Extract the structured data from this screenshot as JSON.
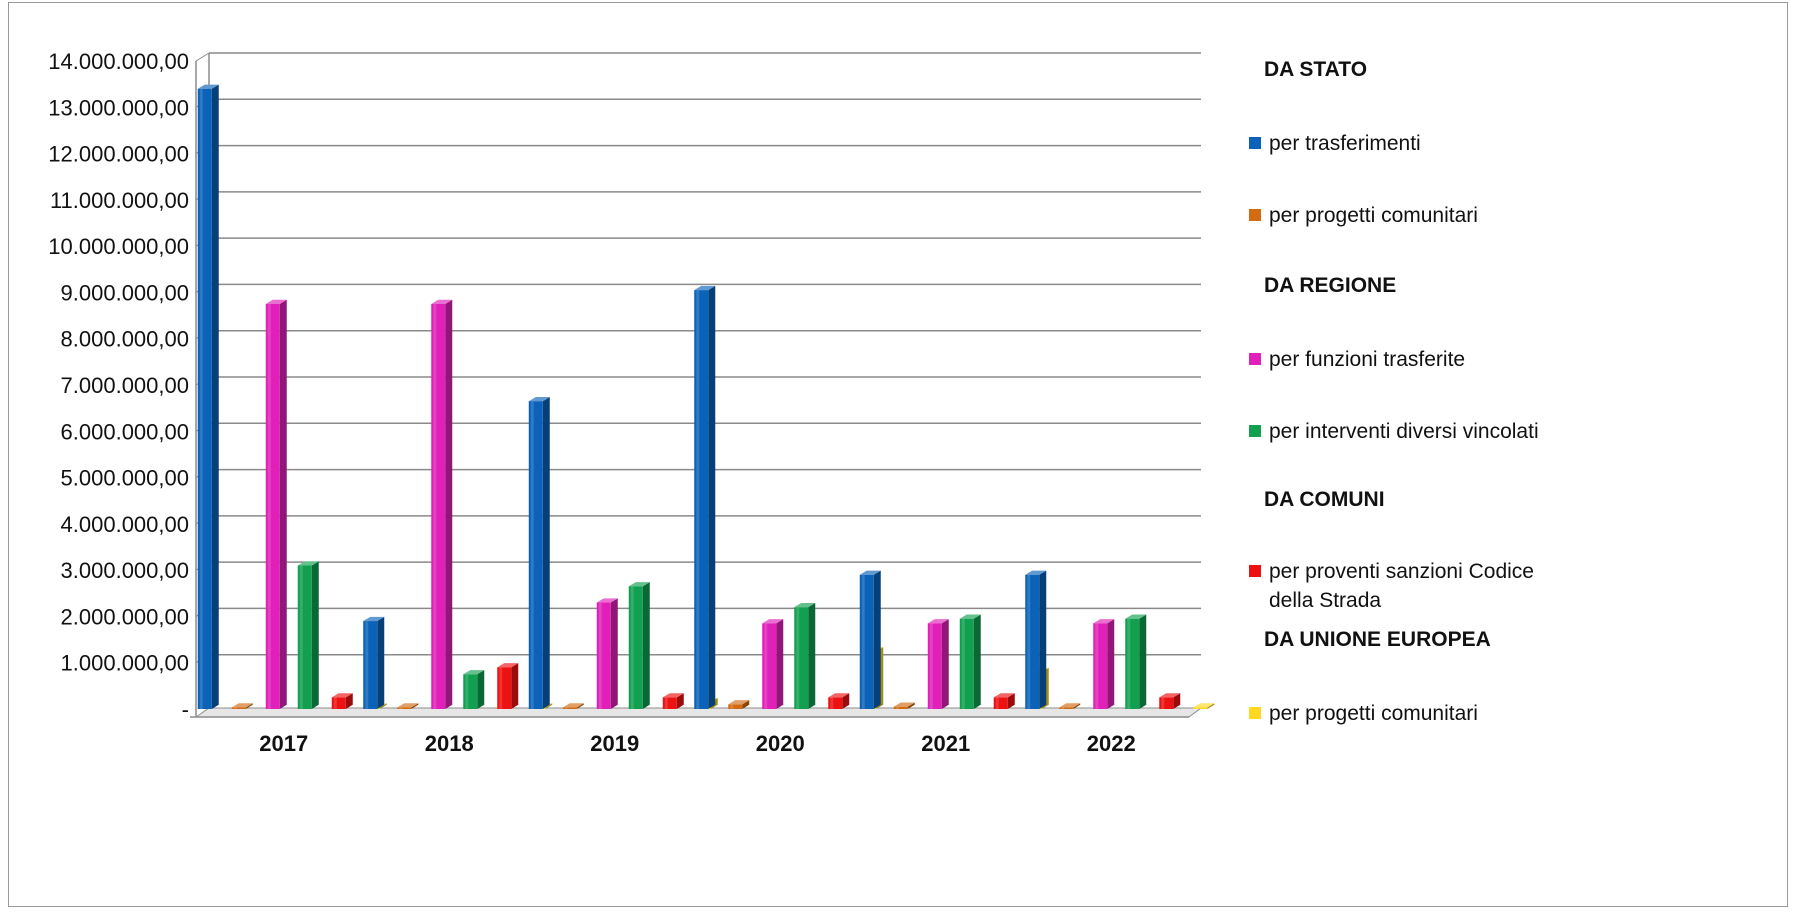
{
  "chart_data": {
    "type": "bar",
    "categories": [
      "2017",
      "2018",
      "2019",
      "2020",
      "2021",
      "2022"
    ],
    "y_tick_labels": [
      "-",
      "1.000.000,00",
      "2.000.000,00",
      "3.000.000,00",
      "4.000.000,00",
      "5.000.000,00",
      "6.000.000,00",
      "7.000.000,00",
      "8.000.000,00",
      "9.000.000,00",
      "10.000.000,00",
      "11.000.000,00",
      "12.000.000,00",
      "13.000.000,00",
      "14.000.000,00"
    ],
    "ylim": [
      0,
      14000000
    ],
    "grid": true,
    "legend_position": "right",
    "series": [
      {
        "name": "per trasferimenti",
        "group": "DA STATO",
        "color": "#0a63b8",
        "values": [
          13400000,
          1900000,
          6650000,
          9050000,
          2900000,
          2900000
        ]
      },
      {
        "name": "per progetti comunitari",
        "group": "DA STATO",
        "color": "#d36b12",
        "values": [
          0,
          0,
          0,
          100000,
          50000,
          0
        ]
      },
      {
        "name": "per funzioni trasferite",
        "group": "DA REGIONE",
        "color": "#e020b8",
        "values": [
          8750000,
          8750000,
          2300000,
          1850000,
          1850000,
          1850000
        ]
      },
      {
        "name": "per interventi diversi vincolati",
        "group": "DA REGIONE",
        "color": "#10a050",
        "values": [
          3100000,
          750000,
          2650000,
          2200000,
          1950000,
          1950000
        ]
      },
      {
        "name": "per  proventi sanzioni Codice della Strada",
        "group": "DA COMUNI",
        "color": "#ee1111",
        "values": [
          250000,
          900000,
          250000,
          250000,
          250000,
          250000
        ]
      },
      {
        "name": "per progetti comunitari",
        "group": "DA UNIONE EUROPEA",
        "color": "#ffd820",
        "values": [
          0,
          0,
          150000,
          1250000,
          800000,
          0
        ]
      }
    ],
    "legend": [
      {
        "kind": "header",
        "text": "DA STATO"
      },
      {
        "kind": "item",
        "series": 0,
        "lines": [
          "per trasferimenti"
        ]
      },
      {
        "kind": "item",
        "series": 1,
        "lines": [
          "per progetti comunitari"
        ]
      },
      {
        "kind": "header",
        "text": "DA REGIONE"
      },
      {
        "kind": "item",
        "series": 2,
        "lines": [
          "per funzioni trasferite"
        ]
      },
      {
        "kind": "item",
        "series": 3,
        "lines": [
          "per interventi diversi vincolati"
        ]
      },
      {
        "kind": "header",
        "text": "DA COMUNI"
      },
      {
        "kind": "item",
        "series": 4,
        "lines": [
          "per  proventi sanzioni Codice",
          "della Strada"
        ]
      },
      {
        "kind": "header",
        "text": "DA UNIONE EUROPEA"
      },
      {
        "kind": "item",
        "series": 5,
        "lines": [
          "per progetti comunitari"
        ]
      }
    ]
  }
}
